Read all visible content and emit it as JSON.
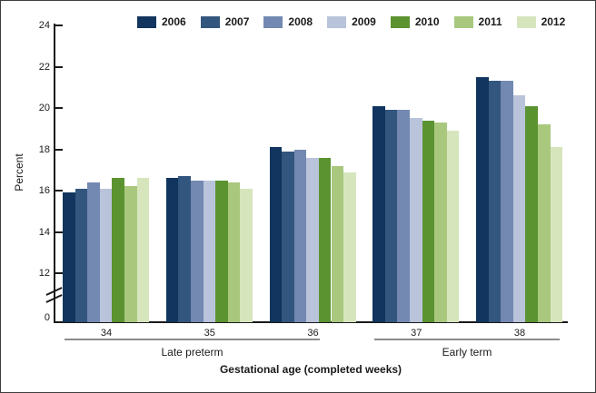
{
  "chart_data": {
    "type": "bar",
    "title": "",
    "categories": [
      "34",
      "35",
      "36",
      "37",
      "38"
    ],
    "series": [
      {
        "name": "2006",
        "color": "#11355e",
        "values": [
          15.9,
          16.6,
          18.1,
          20.1,
          21.5
        ]
      },
      {
        "name": "2007",
        "color": "#33567e",
        "values": [
          16.1,
          16.7,
          17.9,
          19.9,
          21.3
        ]
      },
      {
        "name": "2008",
        "color": "#7389b2",
        "values": [
          16.4,
          16.5,
          18.0,
          19.9,
          21.3
        ]
      },
      {
        "name": "2009",
        "color": "#b9c3da",
        "values": [
          16.1,
          16.5,
          17.6,
          19.5,
          20.6
        ]
      },
      {
        "name": "2010",
        "color": "#5c9331",
        "values": [
          16.6,
          16.5,
          17.6,
          19.4,
          20.1
        ]
      },
      {
        "name": "2011",
        "color": "#a9c87e",
        "values": [
          16.2,
          16.4,
          17.2,
          19.3,
          19.2
        ]
      },
      {
        "name": "2012",
        "color": "#d7e5bd",
        "values": [
          16.6,
          16.1,
          16.9,
          18.9,
          18.1
        ]
      }
    ],
    "xlabel": "Gestational age (completed weeks)",
    "ylabel": "Percent",
    "yticks": [
      0,
      12,
      14,
      16,
      18,
      20,
      22,
      24
    ],
    "ytick_zero_label": "0",
    "ylim": [
      0,
      24
    ],
    "axis_break_between": [
      0,
      12
    ],
    "grid": false,
    "legend_position": "top",
    "group_labels": [
      {
        "label": "Late preterm",
        "categories": [
          "34",
          "35",
          "36"
        ]
      },
      {
        "label": "Early term",
        "categories": [
          "37",
          "38"
        ]
      }
    ]
  }
}
